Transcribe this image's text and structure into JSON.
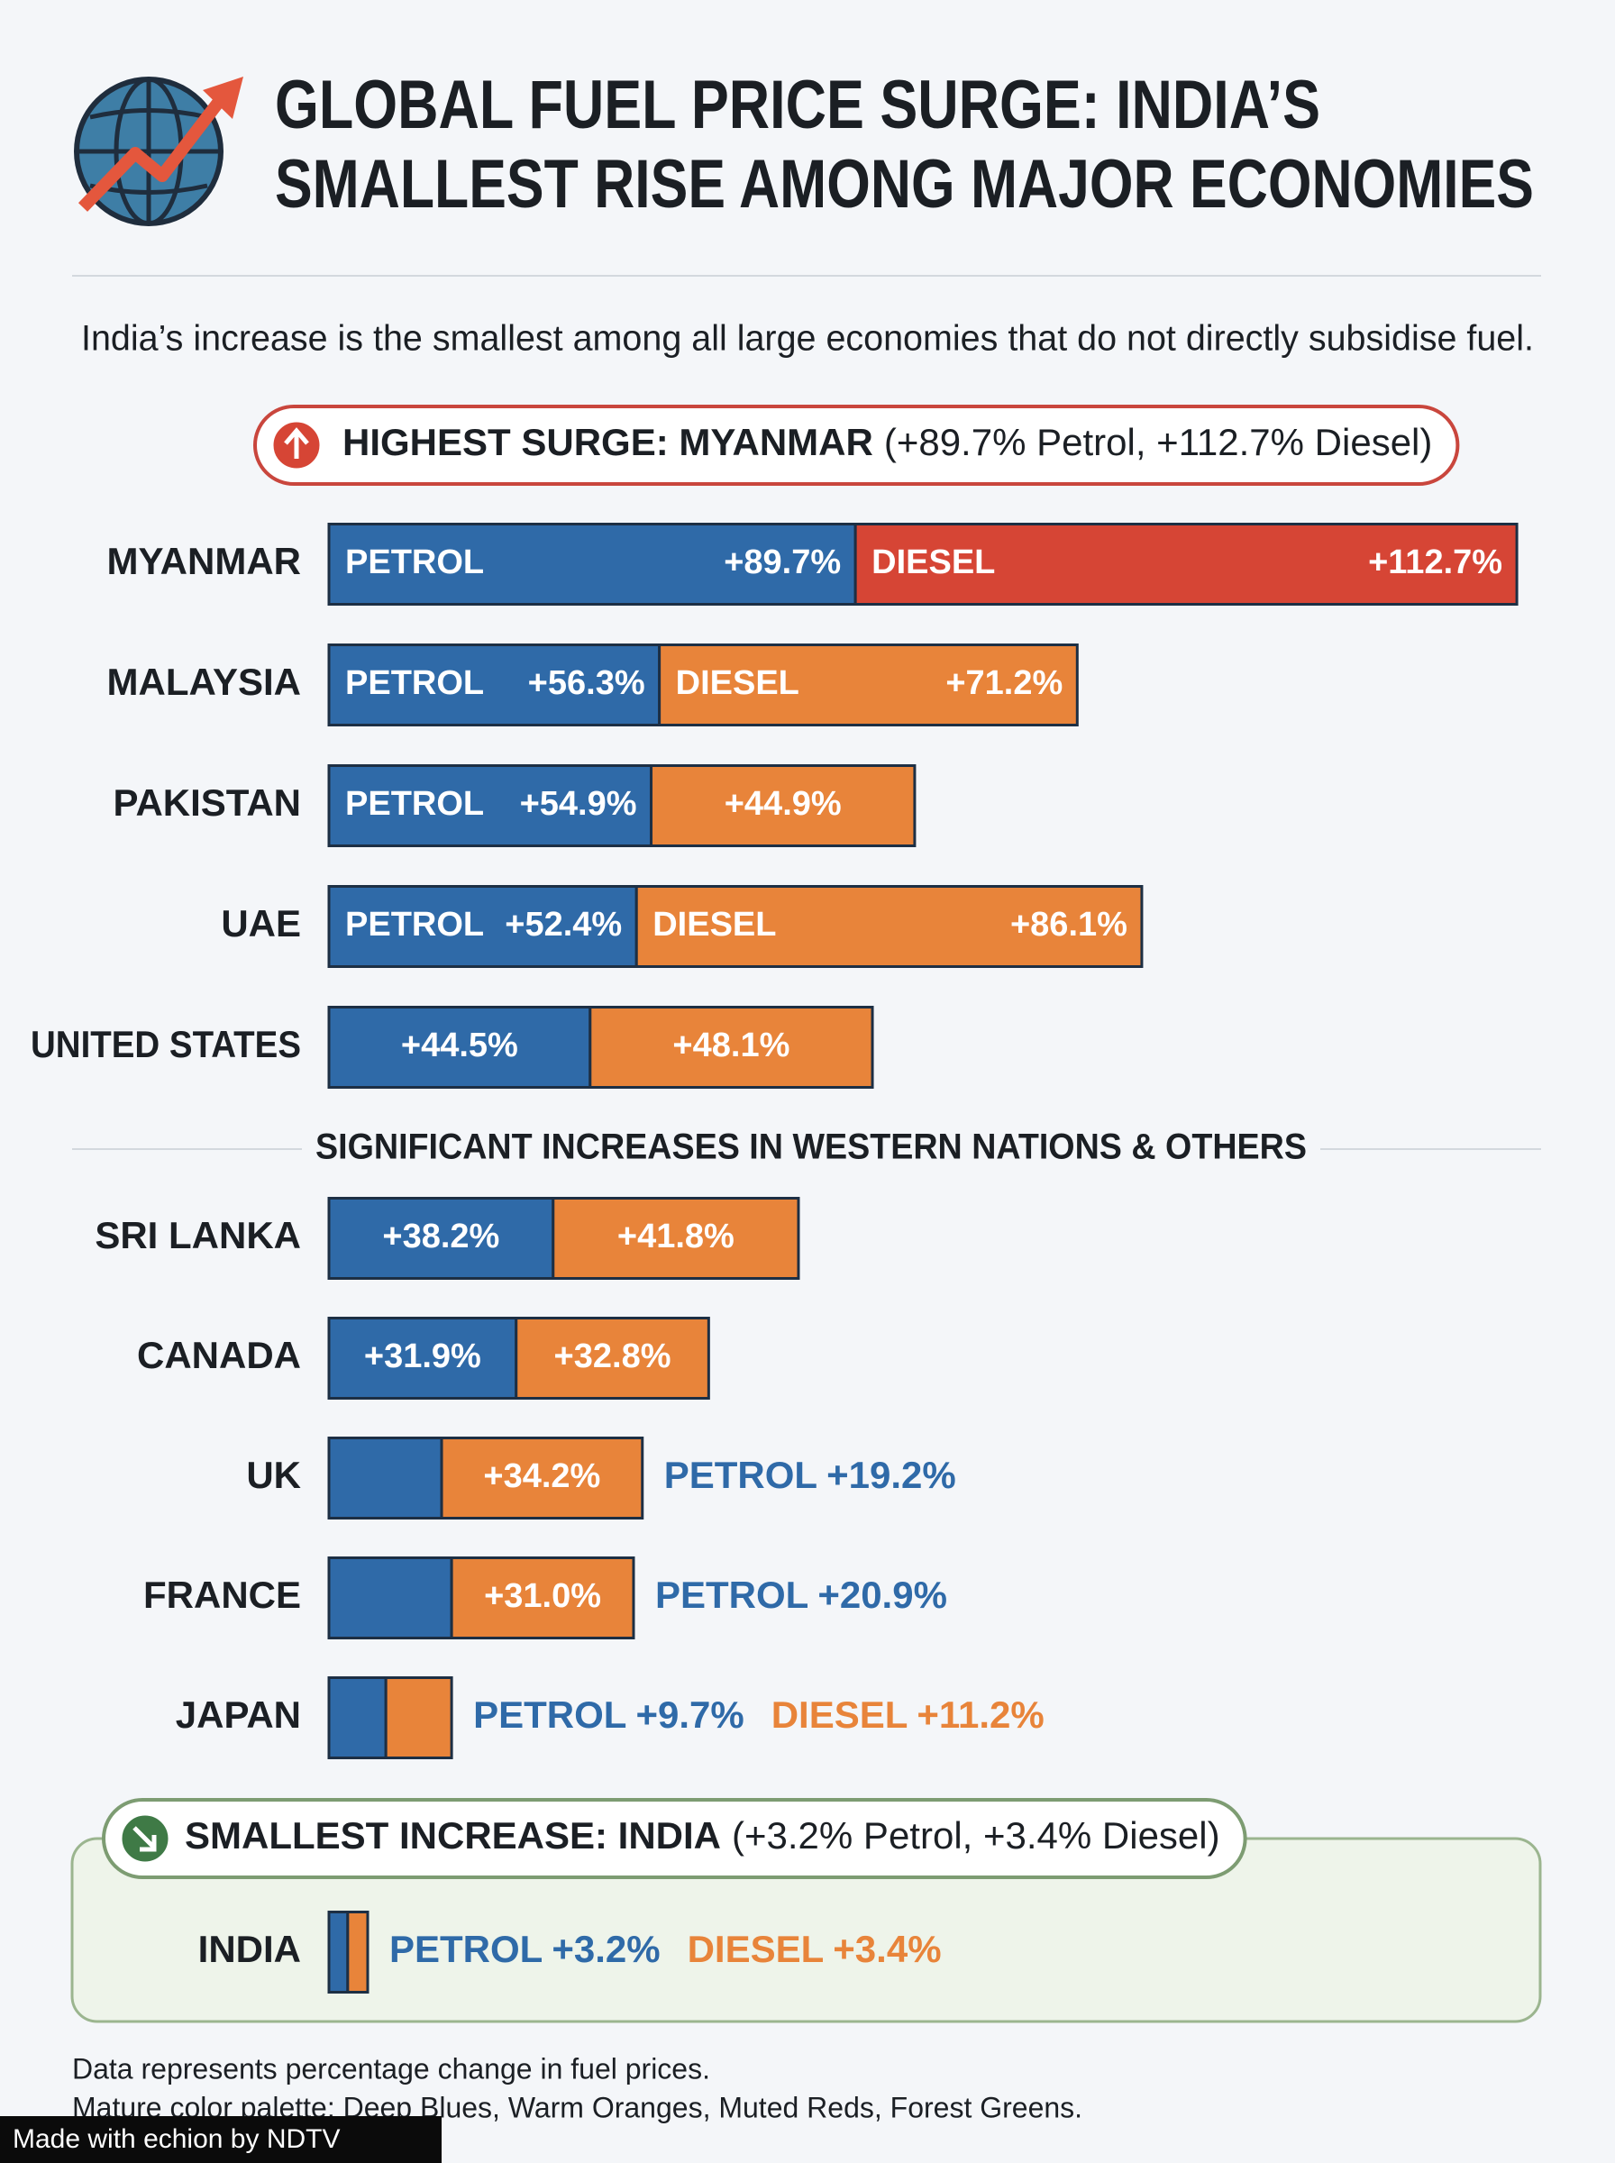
{
  "header": {
    "title_lines": [
      "GLOBAL FUEL PRICE SURGE: INDIA’S",
      "SMALLEST RISE AMONG MAJOR ECONOMIES"
    ],
    "subtitle": "India’s increase is the smallest among all large economies that do not directly subsidise fuel."
  },
  "chart_data": [
    {
      "type": "bar",
      "orientation": "horizontal",
      "stacked": true,
      "title": "HIGHEST SURGE: MYANMAR",
      "subtitle": "(+89.7% Petrol, +112.7% Diesel)",
      "categories": [
        "MYANMAR",
        "MALAYSIA",
        "PAKISTAN",
        "UAE",
        "UNITED STATES"
      ],
      "series": [
        {
          "name": "PETROL",
          "color": "#2f6aa8",
          "values": [
            89.7,
            56.3,
            54.9,
            52.4,
            44.5
          ],
          "value_labels": [
            "+89.7%",
            "+56.3%",
            "+54.9%",
            "+52.4%",
            "+44.5%"
          ]
        },
        {
          "name": "DIESEL",
          "colors": [
            "#d64535",
            "#e8843a",
            "#e8843a",
            "#e8843a",
            "#e8843a"
          ],
          "values": [
            112.7,
            71.2,
            44.9,
            86.1,
            48.1
          ],
          "value_labels": [
            "+112.7%",
            "+71.2%",
            "+44.9%",
            "+86.1%",
            "+48.1%"
          ]
        }
      ],
      "xlim": [
        0,
        205
      ]
    },
    {
      "type": "bar",
      "orientation": "horizontal",
      "stacked": true,
      "title": "SIGNIFICANT INCREASES IN WESTERN NATIONS & OTHERS",
      "categories": [
        "SRI LANKA",
        "CANADA",
        "UK",
        "FRANCE",
        "JAPAN"
      ],
      "series": [
        {
          "name": "PETROL",
          "color": "#2f6aa8",
          "values": [
            38.2,
            31.9,
            19.2,
            20.9,
            9.7
          ],
          "value_labels": [
            "+38.2%",
            "+31.9%",
            "+19.2%",
            "+20.9%",
            "+9.7%"
          ]
        },
        {
          "name": "DIESEL",
          "color": "#e8843a",
          "values": [
            41.8,
            32.8,
            34.2,
            31.0,
            11.2
          ],
          "value_labels": [
            "+41.8%",
            "+32.8%",
            "+34.2%",
            "+31.0%",
            "+11.2%"
          ]
        }
      ],
      "xlim": [
        0,
        205
      ]
    },
    {
      "type": "bar",
      "orientation": "horizontal",
      "stacked": true,
      "title": "SMALLEST INCREASE: INDIA",
      "subtitle": "(+3.2% Petrol, +3.4% Diesel)",
      "categories": [
        "INDIA"
      ],
      "series": [
        {
          "name": "PETROL",
          "color": "#2f6aa8",
          "values": [
            3.2
          ],
          "value_labels": [
            "+3.2%"
          ]
        },
        {
          "name": "DIESEL",
          "color": "#e8843a",
          "values": [
            3.4
          ],
          "value_labels": [
            "+3.4%"
          ]
        }
      ],
      "xlim": [
        0,
        205
      ]
    }
  ],
  "footer": {
    "notes": [
      "Data represents percentage change in fuel prices.",
      "Mature color palette: Deep Blues, Warm Oranges, Muted Reds, Forest Greens."
    ],
    "badge": "Made with echion by NDTV"
  }
}
